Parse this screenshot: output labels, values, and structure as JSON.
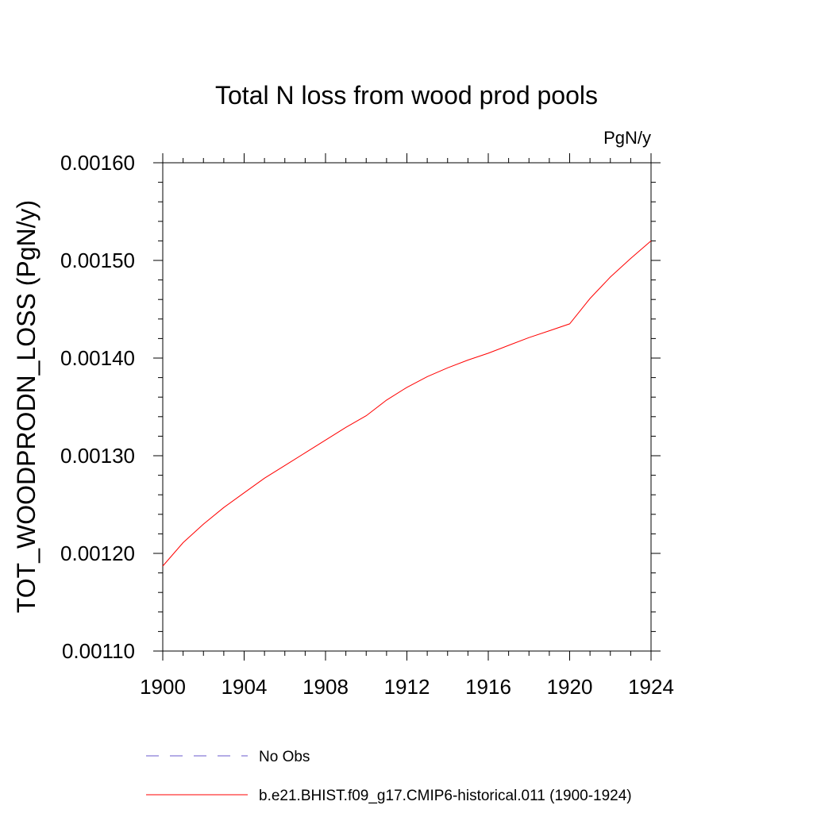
{
  "chart_data": {
    "type": "line",
    "title": "Total N loss from wood prod pools",
    "units": "PgN/y",
    "ylabel": "TOT_WOODPRODN_LOSS  (PgN/y)",
    "xlabel": "",
    "xlim": [
      1900,
      1924
    ],
    "ylim": [
      0.0011,
      0.0016
    ],
    "x_ticks": [
      "1900",
      "1904",
      "1908",
      "1912",
      "1916",
      "1920",
      "1924"
    ],
    "y_ticks": [
      "0.00110",
      "0.00120",
      "0.00130",
      "0.00140",
      "0.00150",
      "0.00160"
    ],
    "grid": false,
    "series": [
      {
        "name": "b.e21.BHIST.f09_g17.CMIP6-historical.011 (1900-1924)",
        "color": "#ff0000",
        "dash": "solid",
        "x": [
          1900,
          1901,
          1902,
          1903,
          1904,
          1905,
          1906,
          1907,
          1908,
          1909,
          1910,
          1911,
          1912,
          1913,
          1914,
          1915,
          1916,
          1917,
          1918,
          1919,
          1920,
          1921,
          1922,
          1923,
          1924
        ],
        "y": [
          0.001187,
          0.001211,
          0.00123,
          0.001247,
          0.001262,
          0.001277,
          0.00129,
          0.001303,
          0.001316,
          0.001329,
          0.001341,
          0.001357,
          0.00137,
          0.001381,
          0.00139,
          0.001398,
          0.001405,
          0.001413,
          0.001421,
          0.001428,
          0.001435,
          0.001461,
          0.001483,
          0.001502,
          0.00152
        ]
      }
    ],
    "legend": [
      {
        "label": "No Obs",
        "color": "#6a5acd",
        "dash": "dashed"
      },
      {
        "label": "b.e21.BHIST.f09_g17.CMIP6-historical.011 (1900-1924)",
        "color": "#ff0000",
        "dash": "solid"
      }
    ],
    "legend_position": "bottom"
  }
}
